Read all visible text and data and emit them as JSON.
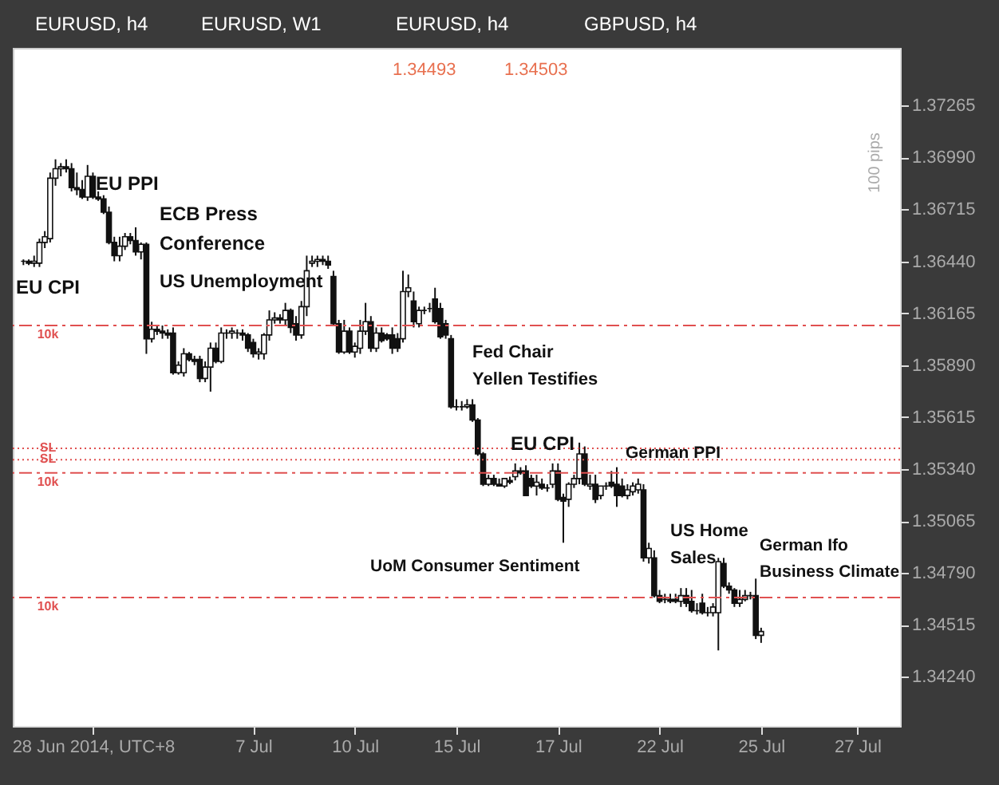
{
  "chart_data": {
    "type": "candlestick",
    "annotations": [
      "EURUSD, h4",
      "EURUSD, W1",
      "EURUSD, h4",
      "GBPUSD, h4",
      "1.34493",
      "1.34503",
      "100 pips",
      "EU CPI",
      "EU PPI",
      "ECB Press\nConference",
      "US Unemployment",
      "Fed Chair\nYellen Testifies",
      "EU CPI",
      "German PPI",
      "US Home\nSales",
      "German Ifo\nBusiness Climate",
      "UoM Consumer Sentiment"
    ],
    "categories": [
      null,
      null,
      null,
      null,
      null,
      null,
      null,
      null,
      null,
      null,
      null,
      null,
      null,
      "28 Jun 2014, UTC+8",
      null,
      null,
      null,
      null,
      null,
      null,
      null,
      null,
      null,
      null,
      null,
      null,
      null,
      null,
      null,
      null,
      null,
      null,
      null,
      null,
      null,
      null,
      null,
      null,
      null,
      null,
      null,
      null,
      null,
      "7 Jul",
      null,
      null,
      null,
      null,
      null,
      null,
      null,
      null,
      null,
      null,
      null,
      null,
      null,
      null,
      null,
      null,
      null,
      null,
      "10 Jul",
      null,
      null,
      null,
      null,
      null,
      null,
      null,
      null,
      null,
      null,
      null,
      null,
      null,
      null,
      null,
      null,
      null,
      null,
      "15 Jul",
      null,
      null,
      null,
      null,
      null,
      null,
      null,
      null,
      null,
      null,
      null,
      null,
      null,
      null,
      null,
      null,
      null,
      null,
      "17 Jul",
      null,
      null,
      null,
      null,
      null,
      null,
      null,
      null,
      null,
      null,
      null,
      null,
      null,
      null,
      null,
      null,
      null,
      null,
      "22 Jul",
      null,
      null,
      null,
      null,
      null,
      null,
      null,
      null,
      null,
      null,
      null,
      null,
      null,
      null,
      null,
      null,
      null,
      null,
      "25 Jul",
      null,
      null,
      null,
      null,
      null,
      null,
      null,
      null,
      null,
      null,
      null,
      null,
      null,
      null,
      null,
      null,
      null,
      "27 Jul",
      null,
      null,
      null,
      null,
      null,
      null
    ],
    "ohlc": [
      [
        1.3644,
        1.3645,
        1.3642,
        1.3644
      ],
      [
        1.3644,
        1.3645,
        1.3642,
        1.3643
      ],
      [
        1.3643,
        1.3647,
        1.3641,
        1.3644
      ],
      [
        1.3643,
        1.3656,
        1.3641,
        1.3654
      ],
      [
        1.3654,
        1.366,
        1.3651,
        1.3657
      ],
      [
        1.3656,
        1.3691,
        1.3654,
        1.3688
      ],
      [
        1.3688,
        1.3698,
        1.3684,
        1.3693
      ],
      [
        1.3693,
        1.3696,
        1.3689,
        1.3694
      ],
      [
        1.3694,
        1.3698,
        1.3691,
        1.3693
      ],
      [
        1.3693,
        1.3696,
        1.3681,
        1.3683
      ],
      [
        1.3683,
        1.3691,
        1.3679,
        1.3682
      ],
      [
        1.3682,
        1.3687,
        1.3677,
        1.3678
      ],
      [
        1.3678,
        1.3695,
        1.3676,
        1.3689
      ],
      [
        1.3689,
        1.3691,
        1.3677,
        1.3678
      ],
      [
        1.3678,
        1.3681,
        1.3676,
        1.3677
      ],
      [
        1.3677,
        1.3679,
        1.3669,
        1.367
      ],
      [
        1.367,
        1.3673,
        1.3653,
        1.3654
      ],
      [
        1.3654,
        1.3657,
        1.3644,
        1.3647
      ],
      [
        1.3647,
        1.3657,
        1.3644,
        1.3652
      ],
      [
        1.3652,
        1.3659,
        1.365,
        1.3657
      ],
      [
        1.3657,
        1.3659,
        1.3653,
        1.3655
      ],
      [
        1.3655,
        1.3662,
        1.3647,
        1.3649
      ],
      [
        1.3649,
        1.3654,
        1.3645,
        1.3653
      ],
      [
        1.3653,
        1.3654,
        1.3595,
        1.3603
      ],
      [
        1.3603,
        1.3612,
        1.3601,
        1.3608
      ],
      [
        1.3608,
        1.361,
        1.3605,
        1.3607
      ],
      [
        1.3607,
        1.361,
        1.3603,
        1.3606
      ],
      [
        1.3606,
        1.3608,
        1.3603,
        1.3605
      ],
      [
        1.3606,
        1.3609,
        1.3584,
        1.3585
      ],
      [
        1.3585,
        1.3591,
        1.3584,
        1.3589
      ],
      [
        1.3585,
        1.3598,
        1.3583,
        1.3595
      ],
      [
        1.3595,
        1.3596,
        1.3591,
        1.3592
      ],
      [
        1.3592,
        1.3594,
        1.3589,
        1.3591
      ],
      [
        1.3592,
        1.3594,
        1.358,
        1.3582
      ],
      [
        1.3582,
        1.3591,
        1.358,
        1.3588
      ],
      [
        1.3588,
        1.3601,
        1.3575,
        1.3598
      ],
      [
        1.3598,
        1.3601,
        1.359,
        1.3591
      ],
      [
        1.3591,
        1.3609,
        1.359,
        1.3606
      ],
      [
        1.3606,
        1.3608,
        1.3603,
        1.3606
      ],
      [
        1.3606,
        1.3609,
        1.3603,
        1.3607
      ],
      [
        1.3606,
        1.3608,
        1.3603,
        1.3606
      ],
      [
        1.3606,
        1.3608,
        1.3602,
        1.3605
      ],
      [
        1.3605,
        1.3606,
        1.3596,
        1.3598
      ],
      [
        1.3601,
        1.3603,
        1.3593,
        1.3595
      ],
      [
        1.3595,
        1.3598,
        1.3592,
        1.3596
      ],
      [
        1.3595,
        1.3606,
        1.3592,
        1.3605
      ],
      [
        1.3605,
        1.3618,
        1.3602,
        1.3613
      ],
      [
        1.3613,
        1.3617,
        1.3611,
        1.3614
      ],
      [
        1.3614,
        1.3616,
        1.3611,
        1.3613
      ],
      [
        1.3613,
        1.3622,
        1.361,
        1.3618
      ],
      [
        1.3618,
        1.3619,
        1.3606,
        1.3609
      ],
      [
        1.3611,
        1.3615,
        1.3602,
        1.3605
      ],
      [
        1.3605,
        1.3623,
        1.3603,
        1.362
      ],
      [
        1.362,
        1.3647,
        1.3615,
        1.3639
      ],
      [
        1.3643,
        1.3647,
        1.3641,
        1.3644
      ],
      [
        1.3644,
        1.3647,
        1.3641,
        1.3645
      ],
      [
        1.3645,
        1.3647,
        1.3642,
        1.3644
      ],
      [
        1.3644,
        1.3647,
        1.364,
        1.3642
      ],
      [
        1.3636,
        1.3639,
        1.361,
        1.3611
      ],
      [
        1.3611,
        1.3613,
        1.3595,
        1.3596
      ],
      [
        1.3596,
        1.3613,
        1.3595,
        1.3607
      ],
      [
        1.3607,
        1.3609,
        1.3595,
        1.3596
      ],
      [
        1.3596,
        1.3601,
        1.3593,
        1.3599
      ],
      [
        1.3598,
        1.3613,
        1.3595,
        1.3607
      ],
      [
        1.3607,
        1.3622,
        1.3605,
        1.3612
      ],
      [
        1.3612,
        1.3615,
        1.3596,
        1.3598
      ],
      [
        1.3598,
        1.3609,
        1.3596,
        1.3606
      ],
      [
        1.3606,
        1.3609,
        1.3601,
        1.3602
      ],
      [
        1.3605,
        1.3606,
        1.3602,
        1.3603
      ],
      [
        1.3605,
        1.3609,
        1.3595,
        1.3598
      ],
      [
        1.3603,
        1.3606,
        1.3596,
        1.3598
      ],
      [
        1.3603,
        1.3639,
        1.3601,
        1.3628
      ],
      [
        1.3628,
        1.3637,
        1.3625,
        1.363
      ],
      [
        1.3623,
        1.3628,
        1.3609,
        1.3612
      ],
      [
        1.3611,
        1.362,
        1.3609,
        1.3618
      ],
      [
        1.3618,
        1.362,
        1.3616,
        1.3618
      ],
      [
        1.3619,
        1.3622,
        1.3617,
        1.3619
      ],
      [
        1.3624,
        1.363,
        1.3611,
        1.3612
      ],
      [
        1.3619,
        1.3622,
        1.3603,
        1.3604
      ],
      [
        1.3611,
        1.3613,
        1.3603,
        1.3605
      ],
      [
        1.3603,
        1.3605,
        1.3566,
        1.3567
      ],
      [
        1.3567,
        1.3571,
        1.3565,
        1.3567
      ],
      [
        1.3567,
        1.357,
        1.3565,
        1.3567
      ],
      [
        1.3567,
        1.3571,
        1.3566,
        1.3568
      ],
      [
        1.3568,
        1.3571,
        1.3559,
        1.356
      ],
      [
        1.356,
        1.3561,
        1.3541,
        1.3542
      ],
      [
        1.3542,
        1.3543,
        1.3525,
        1.3526
      ],
      [
        1.3526,
        1.3531,
        1.3525,
        1.3529
      ],
      [
        1.3529,
        1.3531,
        1.3525,
        1.3526
      ],
      [
        1.3526,
        1.3529,
        1.3525,
        1.3525
      ],
      [
        1.3525,
        1.3529,
        1.3524,
        1.3529
      ],
      [
        1.3528,
        1.353,
        1.3526,
        1.3527
      ],
      [
        1.353,
        1.3537,
        1.3528,
        1.3533
      ],
      [
        1.3533,
        1.3535,
        1.3531,
        1.3532
      ],
      [
        1.3533,
        1.3536,
        1.352,
        1.352
      ],
      [
        1.3529,
        1.3531,
        1.3524,
        1.3525
      ],
      [
        1.3525,
        1.3531,
        1.352,
        1.3527
      ],
      [
        1.3526,
        1.3529,
        1.3523,
        1.3524
      ],
      [
        1.3524,
        1.3526,
        1.3522,
        1.3524
      ],
      [
        1.3526,
        1.3537,
        1.3524,
        1.3533
      ],
      [
        1.3533,
        1.3537,
        1.3517,
        1.3518
      ],
      [
        1.3519,
        1.3521,
        1.3495,
        1.3517
      ],
      [
        1.3518,
        1.3527,
        1.3514,
        1.3526
      ],
      [
        1.3526,
        1.3531,
        1.3524,
        1.3529
      ],
      [
        1.3529,
        1.3548,
        1.3526,
        1.3542
      ],
      [
        1.3542,
        1.3546,
        1.3525,
        1.3526
      ],
      [
        1.3525,
        1.3531,
        1.3523,
        1.3526
      ],
      [
        1.3526,
        1.3531,
        1.3516,
        1.3518
      ],
      [
        1.352,
        1.3525,
        1.3518,
        1.3525
      ],
      [
        1.3525,
        1.3527,
        1.3523,
        1.3525
      ],
      [
        1.3527,
        1.3533,
        1.3524,
        1.3525
      ],
      [
        1.3526,
        1.3535,
        1.3514,
        1.352
      ],
      [
        1.3525,
        1.3529,
        1.3519,
        1.352
      ],
      [
        1.352,
        1.3526,
        1.3518,
        1.3523
      ],
      [
        1.3522,
        1.3527,
        1.352,
        1.3525
      ],
      [
        1.3523,
        1.3529,
        1.3521,
        1.3526
      ],
      [
        1.3523,
        1.3526,
        1.3485,
        1.3487
      ],
      [
        1.3487,
        1.3495,
        1.3484,
        1.3492
      ],
      [
        1.3487,
        1.3491,
        1.3466,
        1.3467
      ],
      [
        1.3467,
        1.347,
        1.3463,
        1.3464
      ],
      [
        1.3465,
        1.3468,
        1.3463,
        1.3465
      ],
      [
        1.3465,
        1.3468,
        1.3463,
        1.3464
      ],
      [
        1.3465,
        1.3468,
        1.3463,
        1.3464
      ],
      [
        1.3464,
        1.3471,
        1.3461,
        1.3467
      ],
      [
        1.3467,
        1.3471,
        1.3461,
        1.3463
      ],
      [
        1.3464,
        1.347,
        1.3458,
        1.3459
      ],
      [
        1.3459,
        1.3463,
        1.3457,
        1.3459
      ],
      [
        1.3463,
        1.3468,
        1.3457,
        1.3458
      ],
      [
        1.3458,
        1.3461,
        1.3456,
        1.3458
      ],
      [
        1.3458,
        1.3463,
        1.3456,
        1.3461
      ],
      [
        1.3458,
        1.3487,
        1.3438,
        1.3485
      ],
      [
        1.3484,
        1.3487,
        1.3471,
        1.3472
      ],
      [
        1.3472,
        1.3474,
        1.3468,
        1.347
      ],
      [
        1.347,
        1.3471,
        1.3461,
        1.3463
      ],
      [
        1.3463,
        1.347,
        1.3461,
        1.3465
      ],
      [
        1.3465,
        1.347,
        1.3464,
        1.3467
      ],
      [
        1.3467,
        1.3469,
        1.3465,
        1.3467
      ],
      [
        1.3467,
        1.3476,
        1.3444,
        1.3446
      ],
      [
        1.3446,
        1.345,
        1.3442,
        1.3448
      ],
      null,
      null,
      null,
      null,
      null,
      null,
      null,
      null,
      null,
      null,
      null,
      null,
      null,
      null,
      null,
      null,
      null,
      null,
      null,
      null,
      null,
      null,
      null,
      null
    ],
    "ylim": [
      1.3398,
      1.3757
    ],
    "yticks": [
      {
        "value": 1.3424,
        "label": "1.34240"
      },
      1.34515,
      {
        "value": 1.3479,
        "label": "1.34790"
      },
      1.35065,
      {
        "value": 1.3534,
        "label": "1.35340"
      },
      1.35615,
      {
        "value": 1.3589,
        "label": "1.35890"
      },
      1.36165,
      {
        "value": 1.3644,
        "label": "1.36440"
      },
      1.36715,
      {
        "value": 1.3699,
        "label": "1.36990"
      },
      1.37265
    ],
    "ref_lines": [
      {
        "axis": "y",
        "value": 1.361,
        "label": "10k",
        "color": "#e05050",
        "line_style": "dashed"
      },
      {
        "axis": "y",
        "value": 1.3545,
        "label": "SL",
        "color": "#e05050",
        "line_style": "dotted"
      },
      {
        "axis": "y",
        "value": 1.3539,
        "label": "SL",
        "color": "#e05050",
        "line_style": "dotted"
      },
      {
        "axis": "y",
        "value": 1.3532,
        "label": "10k",
        "color": "#e05050",
        "line_style": "dashed"
      },
      {
        "axis": "y",
        "value": 1.3466,
        "label": "10k",
        "color": "#e05050",
        "line_style": "dashed"
      }
    ]
  }
}
